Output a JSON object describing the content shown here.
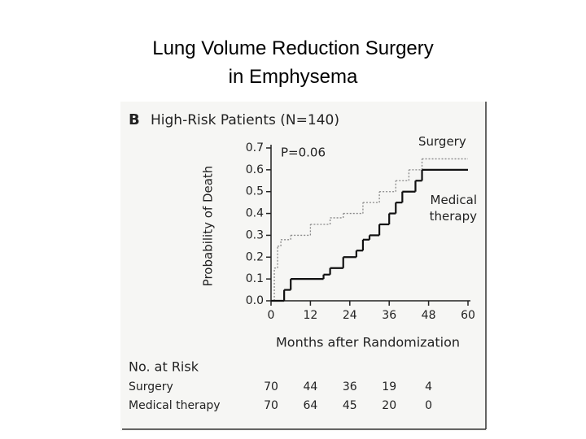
{
  "slide_title": [
    "Lung Volume Reduction Surgery",
    "in Emphysema"
  ],
  "chart_data": {
    "type": "step",
    "panel_label": "B",
    "title": "High-Risk Patients (N=140)",
    "annotation": "P=0.06",
    "xlabel": "Months after Randomization",
    "ylabel": "Probability of Death",
    "xlim": [
      0,
      60
    ],
    "xticks": [
      0,
      12,
      24,
      36,
      48,
      60
    ],
    "ylim": [
      0,
      0.7
    ],
    "yticks": [
      {
        "value": 0,
        "label": "0.0"
      },
      0.1,
      0.2,
      0.3,
      0.4,
      0.5,
      0.6,
      0.7
    ],
    "series": [
      {
        "name": "Surgery",
        "color": "#888888",
        "dashed": true,
        "x": [
          0,
          1,
          2,
          3,
          6,
          12,
          18,
          22,
          28,
          33,
          38,
          42,
          46
        ],
        "values": [
          0,
          0.15,
          0.25,
          0.28,
          0.3,
          0.35,
          0.38,
          0.4,
          0.45,
          0.5,
          0.55,
          0.6,
          0.65
        ]
      },
      {
        "name": "Medical therapy",
        "color": "#111111",
        "dashed": false,
        "x": [
          0,
          4,
          6,
          16,
          18,
          22,
          26,
          28,
          30,
          33,
          36,
          38,
          40,
          44,
          46
        ],
        "values": [
          0,
          0.05,
          0.1,
          0.12,
          0.15,
          0.2,
          0.23,
          0.28,
          0.3,
          0.35,
          0.4,
          0.45,
          0.5,
          0.55,
          0.6
        ]
      }
    ],
    "risk_table": {
      "header": "No. at Risk",
      "rows": [
        {
          "label": "Surgery",
          "values": [
            70,
            44,
            36,
            19,
            4
          ]
        },
        {
          "label": "Medical therapy",
          "values": [
            70,
            64,
            45,
            20,
            0
          ]
        }
      ]
    }
  }
}
